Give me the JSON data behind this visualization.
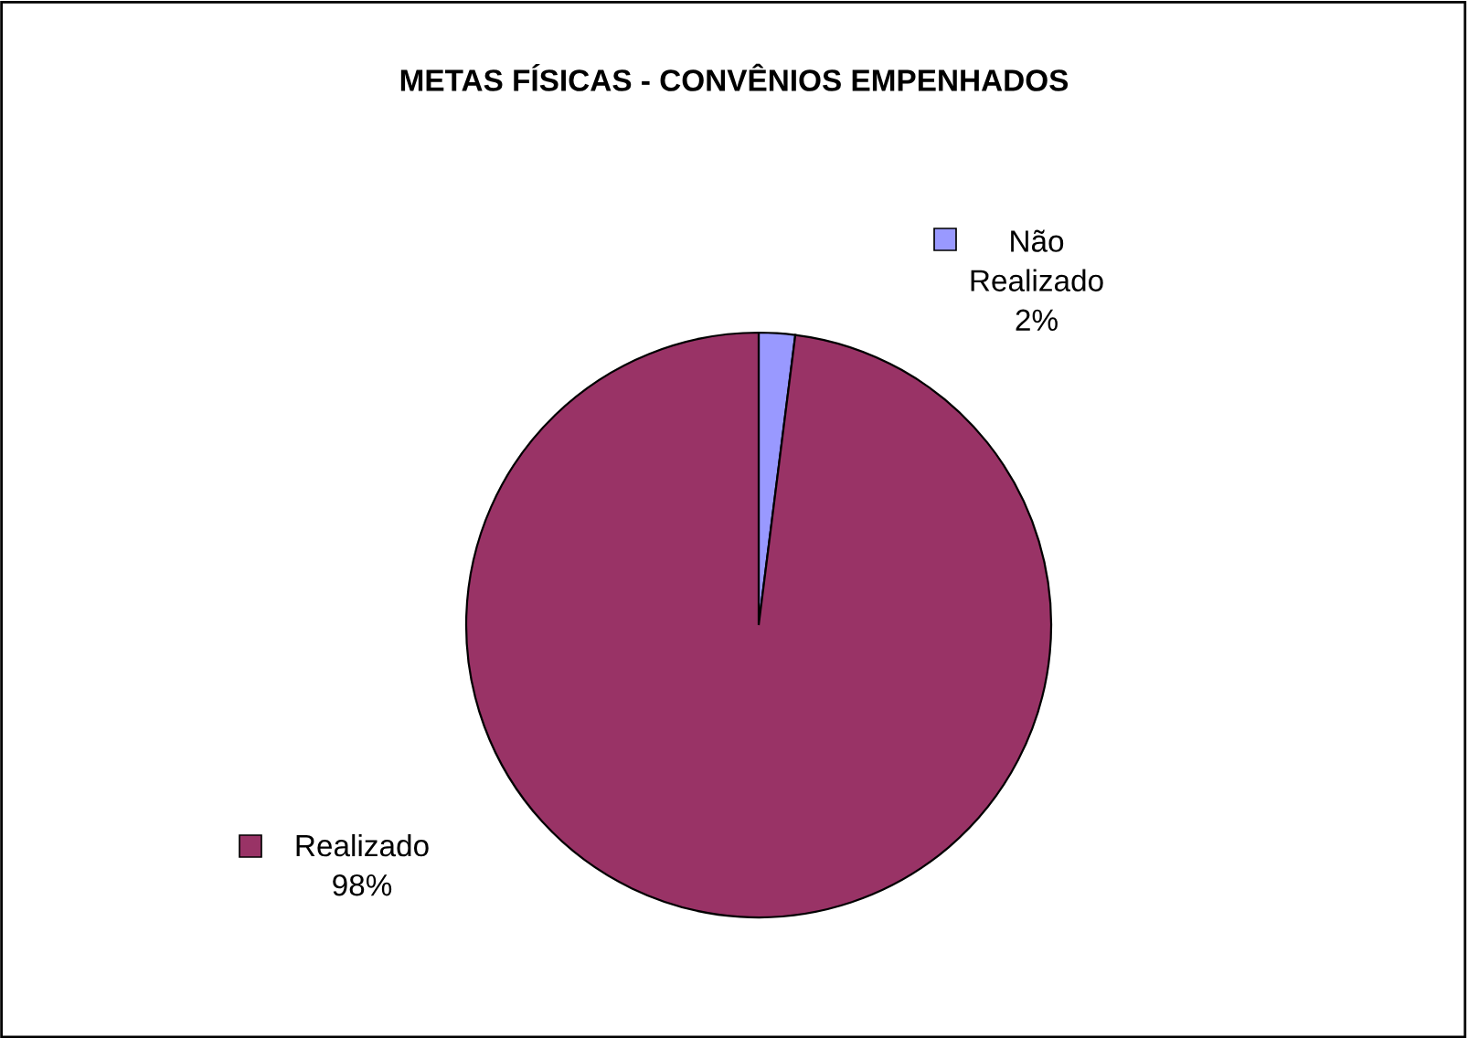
{
  "chart_data": {
    "type": "pie",
    "title": "METAS FÍSICAS - CONVÊNIOS EMPENHADOS",
    "categories": [
      "Não Realizado",
      "Realizado"
    ],
    "values": [
      2,
      98
    ],
    "colors": [
      "#9999ff",
      "#993366"
    ],
    "value_labels": [
      "2%",
      "98%"
    ],
    "legend": "top left"
  }
}
